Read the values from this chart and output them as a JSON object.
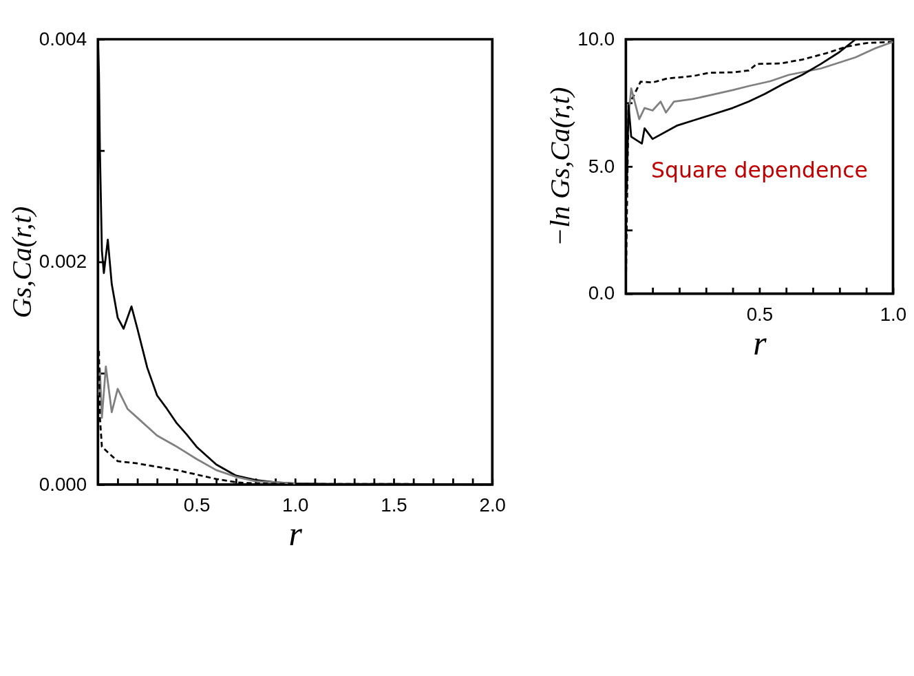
{
  "chart_data": [
    {
      "type": "line",
      "xlabel": "r",
      "ylabel": "Gs,Ca(r,t)",
      "xlim": [
        0,
        2.0
      ],
      "ylim": [
        0,
        0.004
      ],
      "xticks": [
        {
          "value": 0.1,
          "label": null
        },
        {
          "value": 0.2,
          "label": null
        },
        {
          "value": 0.3,
          "label": null
        },
        {
          "value": 0.4,
          "label": null
        },
        {
          "value": 0.5,
          "label": "0.5"
        },
        {
          "value": 0.6,
          "label": null
        },
        {
          "value": 0.7,
          "label": null
        },
        {
          "value": 0.8,
          "label": null
        },
        {
          "value": 0.9,
          "label": null
        },
        {
          "value": 1.0,
          "label": "1.0"
        },
        {
          "value": 1.1,
          "label": null
        },
        {
          "value": 1.2,
          "label": null
        },
        {
          "value": 1.3,
          "label": null
        },
        {
          "value": 1.4,
          "label": null
        },
        {
          "value": 1.5,
          "label": "1.5"
        },
        {
          "value": 1.6,
          "label": null
        },
        {
          "value": 1.7,
          "label": null
        },
        {
          "value": 1.8,
          "label": null
        },
        {
          "value": 1.9,
          "label": null
        },
        {
          "value": 2.0,
          "label": "2.0"
        }
      ],
      "yticks": [
        {
          "value": 0,
          "label": "0.000"
        },
        {
          "value": 0.001,
          "label": null
        },
        {
          "value": 0.002,
          "label": "0.002"
        },
        {
          "value": 0.003,
          "label": null
        },
        {
          "value": 0.004,
          "label": "0.004"
        }
      ],
      "grid": false,
      "legend": false,
      "marker": "none",
      "series": [
        {
          "color": "#000000",
          "line_style": "solid",
          "x": [
            0,
            0.005,
            0.01,
            0.02,
            0.03,
            0.05,
            0.07,
            0.1,
            0.13,
            0.17,
            0.2,
            0.25,
            0.3,
            0.35,
            0.4,
            0.45,
            0.5,
            0.6,
            0.7,
            0.8,
            0.9,
            1.0,
            1.2,
            1.5,
            2.0
          ],
          "values": [
            0.004,
            0.0037,
            0.003,
            0.0021,
            0.0019,
            0.0022,
            0.0018,
            0.0015,
            0.0014,
            0.0016,
            0.0014,
            0.00105,
            0.0008,
            0.00068,
            0.00055,
            0.00045,
            0.00034,
            0.00018,
            8e-05,
            4e-05,
            2e-05,
            1e-05,
            5e-06,
            5e-06,
            0
          ]
        },
        {
          "color": "#808080",
          "line_style": "solid",
          "x": [
            0.005,
            0.01,
            0.02,
            0.04,
            0.07,
            0.1,
            0.15,
            0.2,
            0.3,
            0.4,
            0.5,
            0.6,
            0.7,
            0.8,
            0.9,
            1.0
          ],
          "values": [
            0.0008,
            0.00104,
            0.0006,
            0.00106,
            0.00065,
            0.00086,
            0.00068,
            0.0006,
            0.00044,
            0.00034,
            0.00023,
            0.00013,
            7e-05,
            3e-05,
            2e-05,
            1e-05
          ]
        },
        {
          "color": "#000000",
          "line_style": "dashed",
          "x": [
            0.005,
            0.01,
            0.02,
            0.05,
            0.1,
            0.2,
            0.3,
            0.4,
            0.5,
            0.6,
            0.7,
            0.8,
            1.0,
            1.5,
            2.0
          ],
          "values": [
            0.0012,
            0.0006,
            0.00034,
            0.00029,
            0.00021,
            0.00019,
            0.00016,
            0.00013,
            9e-05,
            5e-05,
            2e-05,
            1e-05,
            5e-06,
            5e-06,
            0
          ]
        }
      ]
    },
    {
      "type": "line",
      "xlabel": "r",
      "ylabel": "−ln Gs,Ca(r,t)",
      "xlim": [
        0,
        1.0
      ],
      "ylim": [
        0,
        10.0
      ],
      "xticks": [
        {
          "value": 0.1,
          "label": null
        },
        {
          "value": 0.2,
          "label": null
        },
        {
          "value": 0.3,
          "label": null
        },
        {
          "value": 0.4,
          "label": null
        },
        {
          "value": 0.5,
          "label": "0.5"
        },
        {
          "value": 0.6,
          "label": null
        },
        {
          "value": 0.7,
          "label": null
        },
        {
          "value": 0.8,
          "label": null
        },
        {
          "value": 0.9,
          "label": null
        },
        {
          "value": 1.0,
          "label": "1.0"
        }
      ],
      "yticks": [
        {
          "value": 0,
          "label": "0.0"
        },
        {
          "value": 2.5,
          "label": null
        },
        {
          "value": 5.0,
          "label": "5.0"
        },
        {
          "value": 7.5,
          "label": null
        },
        {
          "value": 10.0,
          "label": "10.0"
        }
      ],
      "grid": false,
      "legend": false,
      "marker": "none",
      "annotations": [
        "Square dependence"
      ],
      "series": [
        {
          "color": "#000000",
          "line_style": "dashed",
          "x": [
            0,
            0.005,
            0.01,
            0.03,
            0.055,
            0.1,
            0.156,
            0.25,
            0.31,
            0.4,
            0.46,
            0.49,
            0.58,
            0.66,
            0.75,
            0.83,
            0.9,
            1.0
          ],
          "values": [
            0.2,
            4,
            7.4,
            7.8,
            8.33,
            8.3,
            8.46,
            8.55,
            8.68,
            8.7,
            8.77,
            9.03,
            9.05,
            9.2,
            9.45,
            9.72,
            9.85,
            9.9
          ]
        },
        {
          "color": "#808080",
          "line_style": "solid",
          "x": [
            0.01,
            0.02,
            0.05,
            0.07,
            0.1,
            0.13,
            0.15,
            0.18,
            0.25,
            0.32,
            0.4,
            0.46,
            0.54,
            0.61,
            0.73,
            0.86,
            0.93,
            1.0
          ],
          "values": [
            7.0,
            8.07,
            6.86,
            7.3,
            7.2,
            7.55,
            7.12,
            7.55,
            7.65,
            7.81,
            8.0,
            8.16,
            8.35,
            8.6,
            8.85,
            9.29,
            9.63,
            9.9
          ]
        },
        {
          "color": "#000000",
          "line_style": "solid",
          "x": [
            0.003,
            0.01,
            0.02,
            0.06,
            0.07,
            0.1,
            0.19,
            0.25,
            0.32,
            0.4,
            0.46,
            0.52,
            0.59,
            0.66,
            0.73,
            0.8,
            0.86
          ],
          "values": [
            4,
            7.4,
            6.17,
            5.9,
            6.5,
            6.08,
            6.6,
            6.8,
            7.03,
            7.3,
            7.55,
            7.85,
            8.25,
            8.6,
            9.03,
            9.5,
            10
          ]
        }
      ]
    }
  ]
}
